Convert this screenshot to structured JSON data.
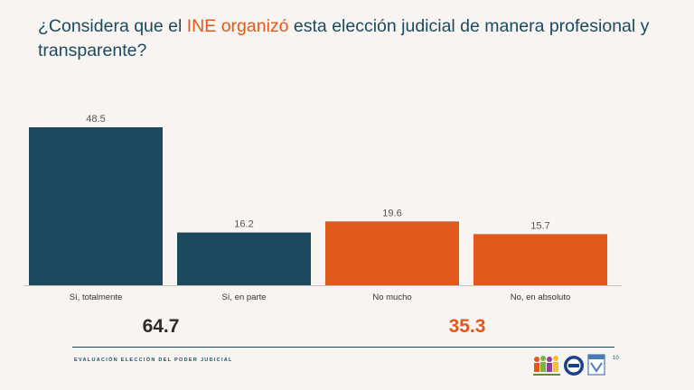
{
  "title": {
    "before": "¿Considera que el ",
    "highlight": "INE organizó",
    "after": " esta elección judicial de manera profesional y transparente?"
  },
  "colors": {
    "teal": "#1b4a5e",
    "orange": "#e0581a",
    "background": "#f8f4f2"
  },
  "chart_data": {
    "type": "bar",
    "title": "¿Considera que el INE organizó esta elección judicial de manera profesional y transparente?",
    "categories": [
      "Sí, totalmente",
      "Sí, en parte",
      "No mucho",
      "No, en absoluto"
    ],
    "values": [
      48.5,
      16.2,
      19.6,
      15.7
    ],
    "value_labels": [
      "48.5",
      "16.2",
      "19.6",
      "15.7"
    ],
    "bar_colors": [
      "#1b4a5e",
      "#1b4a5e",
      "#e0581a",
      "#e0581a"
    ],
    "xlabel": "",
    "ylabel": "",
    "ylim": [
      0,
      48.5
    ],
    "grid": false,
    "totals": [
      {
        "label": "64.7",
        "value": 64.7,
        "color": "#2b2b2b"
      },
      {
        "label": "35.3",
        "value": 35.3,
        "color": "#e0581a"
      }
    ]
  },
  "footer": {
    "text": "EVALUACIÓN ELECCIÓN DEL PODER JUDICIAL",
    "page": "10"
  },
  "icons": [
    "people-logo-icon",
    "seal-logo-icon",
    "shield-logo-icon"
  ]
}
